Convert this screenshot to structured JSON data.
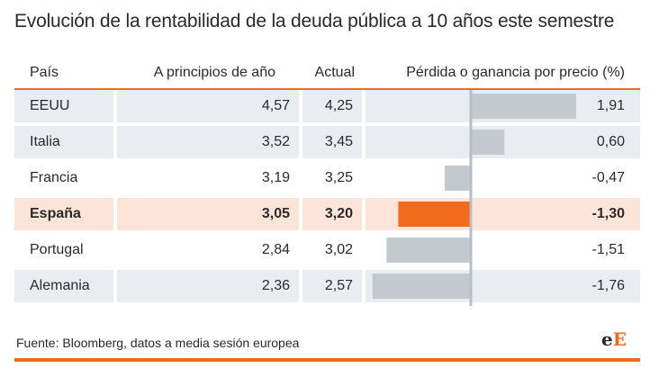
{
  "title": "Evolución de la rentabilidad de la deuda pública a 10 años este semestre",
  "headers": {
    "country": "País",
    "start": "A principios de año",
    "actual": "Actual",
    "change": "Pérdida o ganancia por precio (%)"
  },
  "rows": [
    {
      "country": "EEUU",
      "start": "4,57",
      "actual": "4,25",
      "change": "1,91"
    },
    {
      "country": "Italia",
      "start": "3,52",
      "actual": "3,45",
      "change": "0,60"
    },
    {
      "country": "Francia",
      "start": "3,19",
      "actual": "3,25",
      "change": "-0,47"
    },
    {
      "country": "España",
      "start": "3,05",
      "actual": "3,20",
      "change": "-1,30"
    },
    {
      "country": "Portugal",
      "start": "2,84",
      "actual": "3,02",
      "change": "-1,51"
    },
    {
      "country": "Alemania",
      "start": "2,36",
      "actual": "2,57",
      "change": "-1,76"
    }
  ],
  "chart_data": {
    "type": "bar",
    "categories": [
      "EEUU",
      "Italia",
      "Francia",
      "España",
      "Portugal",
      "Alemania"
    ],
    "values": [
      1.91,
      0.6,
      -0.47,
      -1.3,
      -1.51,
      -1.76
    ],
    "highlight": "España",
    "colors": {
      "bar": "#c4c9d0",
      "highlight_bar": "#f26b1d",
      "zero_line": "#b8bec6"
    }
  },
  "source": "Fuente: Bloomberg, datos a media sesión europea",
  "logo": {
    "first": "e",
    "second": "E"
  },
  "colors": {
    "accent": "#f26b1d",
    "shade": "#e9edf2",
    "highlight_row": "#fde4d9"
  }
}
